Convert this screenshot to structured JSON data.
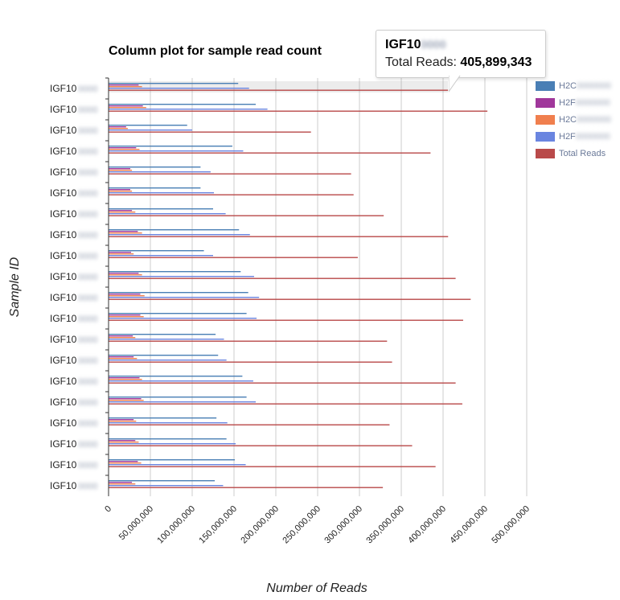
{
  "chart_data": {
    "type": "bar",
    "orientation": "horizontal",
    "title": "Column plot for sample read count",
    "xlabel": "Number of Reads",
    "ylabel": "Sample ID",
    "xlim": [
      0,
      500000000
    ],
    "x_ticks": [
      "0",
      "50,000,000",
      "100,000,000",
      "150,000,000",
      "200,000,000",
      "250,000,000",
      "300,000,000",
      "350,000,000",
      "400,000,000",
      "450,000,000",
      "500,000,000"
    ],
    "grid": "vertical",
    "legend_position": "right",
    "categories": [
      "IGF10",
      "IGF10",
      "IGF10",
      "IGF10",
      "IGF10",
      "IGF10",
      "IGF10",
      "IGF10",
      "IGF10",
      "IGF10",
      "IGF10",
      "IGF10",
      "IGF10",
      "IGF10",
      "IGF10",
      "IGF10",
      "IGF10",
      "IGF10",
      "IGF10",
      "IGF10"
    ],
    "series": [
      {
        "name": "H2C",
        "color": "#4a7fb5",
        "values": [
          155000000,
          176000000,
          94000000,
          148000000,
          110000000,
          110000000,
          125000000,
          156000000,
          114000000,
          158000000,
          167000000,
          165000000,
          128000000,
          131000000,
          160000000,
          165000000,
          129000000,
          141000000,
          151000000,
          127000000
        ]
      },
      {
        "name": "H2F",
        "color": "#a0379b",
        "values": [
          36000000,
          41000000,
          21000000,
          33000000,
          26000000,
          26000000,
          28000000,
          35000000,
          27000000,
          36000000,
          38000000,
          38000000,
          29000000,
          30000000,
          37000000,
          39000000,
          30000000,
          32000000,
          35000000,
          28000000
        ]
      },
      {
        "name": "H2C",
        "color": "#f07f4e",
        "values": [
          40000000,
          45000000,
          23000000,
          37000000,
          28000000,
          28000000,
          32000000,
          40000000,
          30000000,
          40000000,
          43000000,
          42000000,
          32000000,
          34000000,
          40000000,
          42000000,
          33000000,
          36000000,
          39000000,
          32000000
        ]
      },
      {
        "name": "H2F",
        "color": "#6a85e0",
        "values": [
          168000000,
          190000000,
          100000000,
          161000000,
          122000000,
          126000000,
          140000000,
          169000000,
          125000000,
          174000000,
          180000000,
          177000000,
          138000000,
          141000000,
          173000000,
          176000000,
          142000000,
          152000000,
          164000000,
          137000000
        ]
      },
      {
        "name": "Total Reads",
        "color": "#b94a4a",
        "values": [
          405899343,
          453000000,
          242000000,
          385000000,
          290000000,
          293000000,
          329000000,
          406000000,
          298000000,
          415000000,
          433000000,
          424000000,
          333000000,
          339000000,
          415000000,
          423000000,
          336000000,
          363000000,
          391000000,
          328000000
        ]
      }
    ]
  },
  "legend": {
    "items": [
      {
        "label": "H2C",
        "color": "#4a7fb5",
        "blurred": true
      },
      {
        "label": "H2F",
        "color": "#a0379b",
        "blurred": true
      },
      {
        "label": "H2C",
        "color": "#f07f4e",
        "blurred": true
      },
      {
        "label": "H2F",
        "color": "#6a85e0",
        "blurred": true
      },
      {
        "label": "Total Reads",
        "color": "#b94a4a",
        "blurred": false
      }
    ]
  },
  "tooltip": {
    "sample_id": "IGF10",
    "label": "Total Reads:",
    "value": "405,899,343"
  }
}
